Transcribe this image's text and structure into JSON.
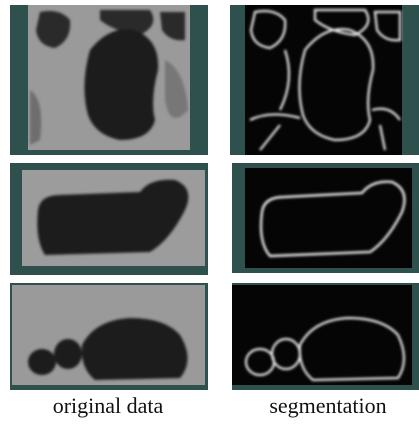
{
  "captions": [
    "original data",
    "segmentation"
  ]
}
